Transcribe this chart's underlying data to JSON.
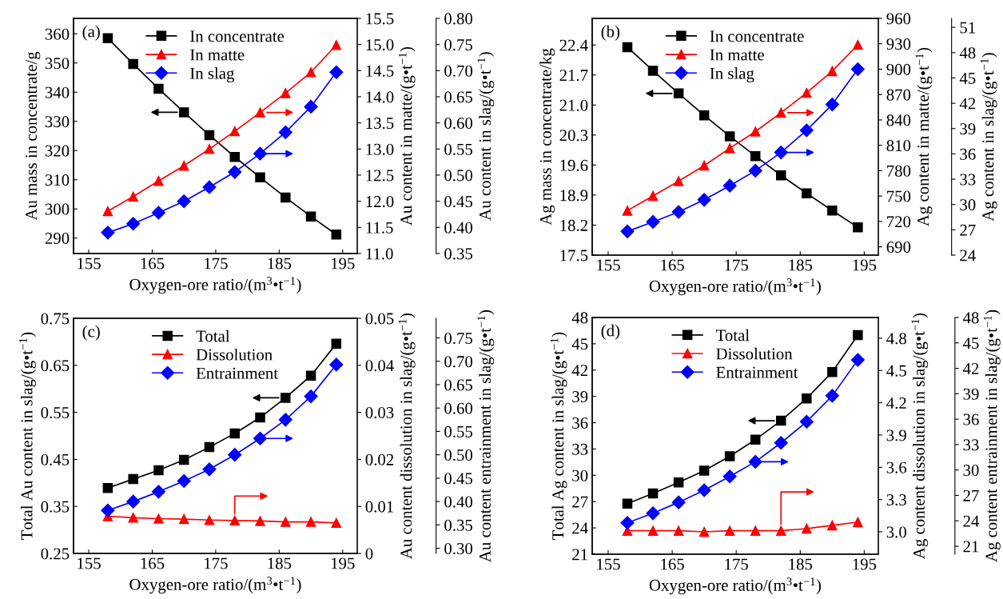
{
  "chart_data": [
    {
      "type": "line",
      "annotations": [
        "(a)"
      ],
      "xlabel": "Oxygen-ore ratio/(m$^{3}$•t$^{−1}$)",
      "ylabel": "Au mass in concentrate/g",
      "y2label": "Au content in matte/(g•t$^{−1}$)",
      "y3label": "Au content in slag/(g•t$^{−1}$)",
      "x": [
        158,
        162,
        166,
        170,
        174,
        178,
        182,
        186,
        190,
        194
      ],
      "xlim": [
        152.6,
        197.3
      ],
      "xticks": [
        155,
        165,
        175,
        185,
        195
      ],
      "ylim": [
        284.7,
        365.3
      ],
      "yticks": [
        290,
        300,
        310,
        320,
        330,
        340,
        350,
        360
      ],
      "y2lim": [
        11,
        15.5
      ],
      "y2ticks": [
        {
          "value": 11,
          "label": "11.0"
        },
        11.5,
        {
          "value": 12,
          "label": "12.0"
        },
        12.5,
        {
          "value": 13,
          "label": "13.0"
        },
        13.5,
        {
          "value": 14,
          "label": "14.0"
        },
        14.5,
        {
          "value": 15,
          "label": "15.0"
        },
        15.5
      ],
      "y3lim": [
        0.35,
        0.8
      ],
      "y3ticks": [
        0.35,
        {
          "value": 0.4,
          "label": "0.40"
        },
        0.45,
        {
          "value": 0.5,
          "label": "0.50"
        },
        0.55,
        {
          "value": 0.6,
          "label": "0.60"
        },
        0.65,
        {
          "value": 0.7,
          "label": "0.70"
        },
        0.75,
        {
          "value": 0.8,
          "label": "0.80"
        }
      ],
      "legend": "top",
      "grid": false,
      "series": [
        {
          "name": "In concentrate",
          "color": "#000000",
          "marker": "square",
          "values": [
            358.5,
            349.7,
            341.2,
            333.1,
            325.3,
            317.8,
            310.8,
            303.9,
            297.4,
            291.2
          ]
        },
        {
          "name": "In matte",
          "color": "#ff0000",
          "marker": "triangle",
          "axis": "y2",
          "values": [
            11.81,
            12.09,
            12.39,
            12.68,
            13.0,
            13.34,
            13.7,
            14.07,
            14.47,
            14.99
          ]
        },
        {
          "name": "In slag",
          "color": "#0000ff",
          "marker": "diamond",
          "axis": "y3",
          "values": [
            0.39,
            0.407,
            0.428,
            0.45,
            0.477,
            0.506,
            0.541,
            0.582,
            0.631,
            0.697
          ]
        }
      ]
    },
    {
      "type": "line",
      "annotations": [
        "(b)"
      ],
      "xlabel": "Oxygen-ore ratio/(m$^{3}$•t$^{−1}$)",
      "ylabel": "Ag mass in concentrate/kg",
      "y2label": "Ag content in matte/(g•t$^{−1}$)",
      "y3label": "Ag content in slag/(g•t$^{−1}$)",
      "x": [
        158,
        162,
        166,
        170,
        174,
        178,
        182,
        186,
        190,
        194
      ],
      "xlim": [
        152.5,
        197.2
      ],
      "xticks": [
        155,
        165,
        175,
        185,
        195
      ],
      "ylim": [
        17.5,
        23.02
      ],
      "yticks": [
        17.5,
        18.2,
        18.9,
        19.6,
        20.3,
        {
          "value": 21,
          "label": "21.0"
        },
        21.7,
        22.4
      ],
      "y2lim": [
        680.2,
        960
      ],
      "y2ticks": [
        690,
        720,
        750,
        780,
        810,
        840,
        870,
        900,
        930,
        960
      ],
      "y3lim": [
        24,
        52.06
      ],
      "y3ticks": [
        24,
        27,
        30,
        33,
        36,
        39,
        42,
        45,
        48,
        51
      ],
      "legend": "top",
      "grid": false,
      "series": [
        {
          "name": "In concentrate",
          "color": "#000000",
          "marker": "square",
          "values": [
            22.35,
            21.8,
            21.27,
            20.76,
            20.27,
            19.81,
            19.36,
            18.94,
            18.54,
            18.15
          ]
        },
        {
          "name": "In matte",
          "color": "#ff0000",
          "marker": "triangle",
          "axis": "y2",
          "values": [
            732.7,
            750.2,
            767.6,
            786.1,
            806.5,
            826.2,
            848.5,
            872.0,
            897.7,
            928.7
          ]
        },
        {
          "name": "In slag",
          "color": "#0000ff",
          "marker": "diamond",
          "axis": "y3",
          "values": [
            26.81,
            27.94,
            29.12,
            30.56,
            32.23,
            34.01,
            36.17,
            38.79,
            41.86,
            46.04
          ]
        }
      ]
    },
    {
      "type": "line",
      "annotations": [
        "(c)"
      ],
      "xlabel": "Oxygen-ore ratio/(m$^{3}$•t$^{−1}$)",
      "ylabel": "Total Au content in slag/(g•t$^{−1}$)",
      "y2label": "Au content dissolution in slag/(g•t$^{−1}$)",
      "y3label": "Au content entrainment in slag/(g•t$^{−1}$)",
      "x": [
        158,
        162,
        166,
        170,
        174,
        178,
        182,
        186,
        190,
        194
      ],
      "xlim": [
        152.6,
        197.3
      ],
      "xticks": [
        155,
        165,
        175,
        185,
        195
      ],
      "ylim": [
        0.25,
        0.75
      ],
      "yticks": [
        0.25,
        0.35,
        0.45,
        0.55,
        0.65,
        0.75
      ],
      "y2lim": [
        0,
        0.05
      ],
      "y2ticks": [
        0,
        0.01,
        0.02,
        0.03,
        0.04,
        0.05
      ],
      "y3lim": [
        0.289,
        0.792
      ],
      "y3ticks": [
        {
          "value": 0.3,
          "label": "0.30"
        },
        0.35,
        {
          "value": 0.4,
          "label": "0.40"
        },
        0.45,
        {
          "value": 0.5,
          "label": "0.50"
        },
        0.55,
        {
          "value": 0.6,
          "label": "0.60"
        },
        0.65,
        {
          "value": 0.7,
          "label": "0.70"
        },
        0.75
      ],
      "legend": "top",
      "grid": false,
      "series": [
        {
          "name": "Total",
          "color": "#000000",
          "marker": "square",
          "values": [
            0.389,
            0.408,
            0.427,
            0.449,
            0.476,
            0.505,
            0.539,
            0.581,
            0.628,
            0.696
          ]
        },
        {
          "name": "Dissolution",
          "color": "#ff0000",
          "marker": "triangle",
          "axis": "y2",
          "values": [
            0.0079,
            0.0076,
            0.0074,
            0.0073,
            0.0071,
            0.007,
            0.0069,
            0.0067,
            0.0067,
            0.0065
          ]
        },
        {
          "name": "Entrainment",
          "color": "#0000ff",
          "marker": "diamond",
          "axis": "y3",
          "values": [
            0.381,
            0.4,
            0.421,
            0.444,
            0.469,
            0.5,
            0.535,
            0.575,
            0.625,
            0.693
          ]
        }
      ]
    },
    {
      "type": "line",
      "annotations": [
        "(d)"
      ],
      "xlabel": "Oxygen-ore ratio/(m$^{3}$•t$^{−1}$)",
      "ylabel": "Total Ag content in slag/(g•t$^{−1}$)",
      "y2label": "Ag content dissolution in slag/(g•t$^{−1}$)",
      "y3label": "Ag content entrainment in slag/(g•t$^{−1}$)",
      "x": [
        158,
        162,
        166,
        170,
        174,
        178,
        182,
        186,
        190,
        194
      ],
      "xlim": [
        152.5,
        197.2
      ],
      "xticks": [
        155,
        165,
        175,
        185,
        195
      ],
      "ylim": [
        21,
        48
      ],
      "yticks": [
        21,
        24,
        27,
        30,
        33,
        36,
        39,
        42,
        45,
        48
      ],
      "y2lim": [
        2.792,
        4.993
      ],
      "y2ticks": [
        {
          "value": 3,
          "label": "3.0"
        },
        3.3,
        3.6,
        3.9,
        4.2,
        4.5,
        4.8
      ],
      "y3lim": [
        20.06,
        48
      ],
      "y3ticks": [
        21,
        24,
        27,
        30,
        33,
        36,
        39,
        42,
        45,
        48
      ],
      "legend": "top",
      "grid": false,
      "series": [
        {
          "name": "Total",
          "color": "#000000",
          "marker": "square",
          "values": [
            26.77,
            27.93,
            29.18,
            30.53,
            32.17,
            34.07,
            36.22,
            38.77,
            41.77,
            46.0
          ]
        },
        {
          "name": "Dissolution",
          "color": "#ff0000",
          "marker": "triangle",
          "axis": "y2",
          "values": [
            3.01,
            3.01,
            3.01,
            3.0,
            3.01,
            3.01,
            3.01,
            3.03,
            3.06,
            3.09
          ]
        },
        {
          "name": "Entrainment",
          "color": "#0000ff",
          "marker": "diamond",
          "axis": "y3",
          "values": [
            23.76,
            24.89,
            26.18,
            27.61,
            29.24,
            30.97,
            33.2,
            35.7,
            38.76,
            42.99
          ]
        }
      ]
    }
  ]
}
